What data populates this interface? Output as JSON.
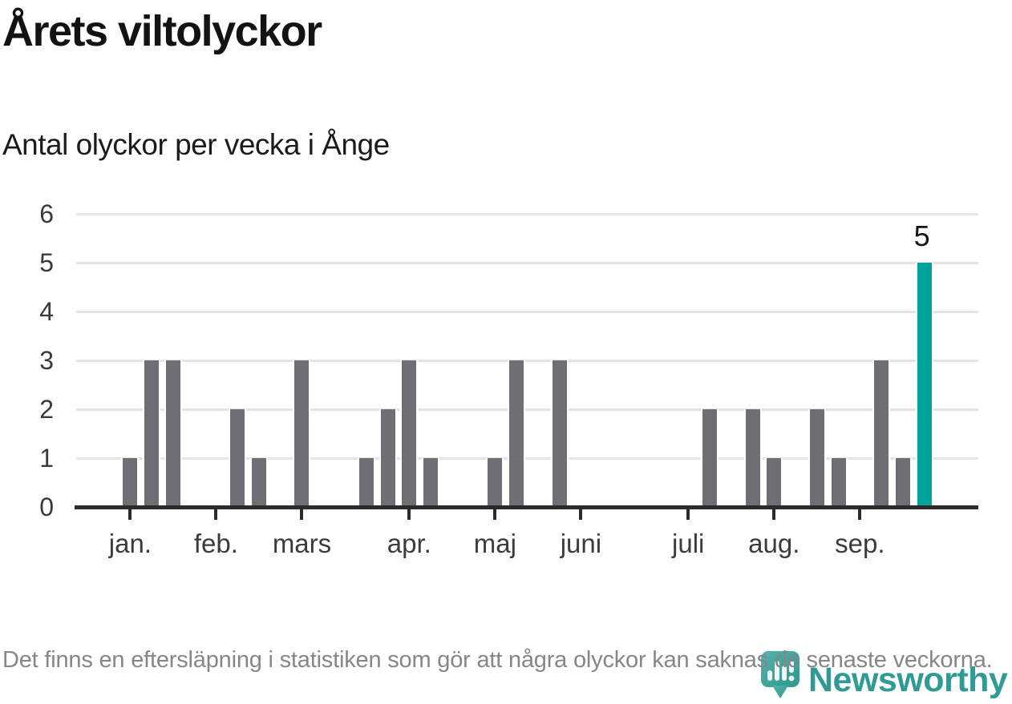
{
  "header": {
    "title": "Årets viltolyckor",
    "subtitle": "Antal olyckor per vecka i Ånge"
  },
  "chart_data": {
    "type": "bar",
    "title": "Årets viltolyckor",
    "subtitle": "Antal olyckor per vecka i Ånge",
    "x_unit": "vecka (week of year, weeks 1-38)",
    "values": [
      1,
      3,
      3,
      0,
      0,
      2,
      1,
      0,
      3,
      0,
      0,
      1,
      2,
      3,
      1,
      0,
      0,
      1,
      3,
      0,
      3,
      0,
      0,
      0,
      0,
      0,
      0,
      2,
      0,
      2,
      1,
      0,
      2,
      1,
      0,
      3,
      1,
      5
    ],
    "highlight_slot": 38,
    "highlight_label": "5",
    "ylim": [
      0,
      6
    ],
    "yticks": [
      0,
      1,
      2,
      3,
      4,
      5,
      6
    ],
    "month_ticks": [
      {
        "label": "jan.",
        "slot": 1
      },
      {
        "label": "feb.",
        "slot": 5
      },
      {
        "label": "mars",
        "slot": 9
      },
      {
        "label": "apr.",
        "slot": 14
      },
      {
        "label": "maj",
        "slot": 18
      },
      {
        "label": "juni",
        "slot": 22
      },
      {
        "label": "juli",
        "slot": 27
      },
      {
        "label": "aug.",
        "slot": 31
      },
      {
        "label": "sep.",
        "slot": 35
      }
    ],
    "grid": "horizontal",
    "legend": "none",
    "colors": {
      "bar": "#6f6e74",
      "highlight": "#00a39b",
      "grid": "#e4e4e4",
      "axis": "#2b2b2b"
    }
  },
  "footer": {
    "note": "Det finns en eftersläpning i statistiken som gör att några olyckor kan saknas de senaste veckorna."
  },
  "logo": {
    "text": "Newsworthy",
    "icon": "newsworthy-pin-barchart-icon",
    "color": "#2f9b94"
  }
}
